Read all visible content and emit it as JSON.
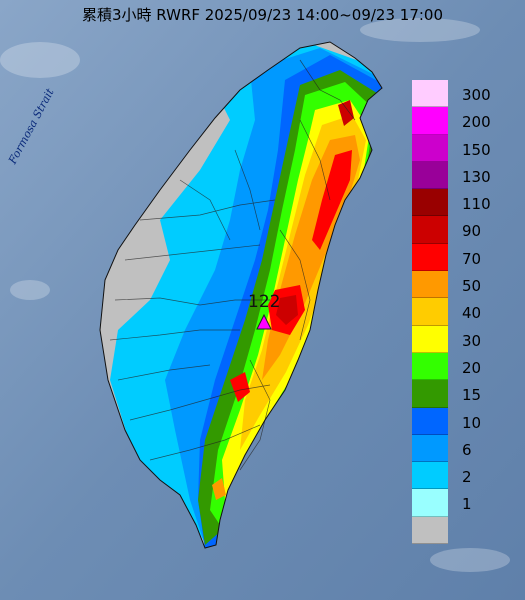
{
  "title": "累積3小時 RWRF 2025/09/23 14:00~09/23 17:00",
  "strait_label": "Formosa Strait",
  "max_marker": {
    "label": "122",
    "icon": "max-triangle-icon"
  },
  "legend": [
    {
      "label": "300",
      "color": "#ffccff"
    },
    {
      "label": "200",
      "color": "#ff00ff"
    },
    {
      "label": "150",
      "color": "#cc00cc"
    },
    {
      "label": "130",
      "color": "#990099"
    },
    {
      "label": "110",
      "color": "#990000"
    },
    {
      "label": "90",
      "color": "#cc0000"
    },
    {
      "label": "70",
      "color": "#ff0000"
    },
    {
      "label": "50",
      "color": "#ff9900"
    },
    {
      "label": "40",
      "color": "#ffcc00"
    },
    {
      "label": "30",
      "color": "#ffff00"
    },
    {
      "label": "20",
      "color": "#33ff00"
    },
    {
      "label": "15",
      "color": "#339900"
    },
    {
      "label": "10",
      "color": "#0066ff"
    },
    {
      "label": "6",
      "color": "#0099ff"
    },
    {
      "label": "2",
      "color": "#00ccff"
    },
    {
      "label": "1",
      "color": "#99ffff"
    },
    {
      "label": "",
      "color": "#c0c0c0"
    }
  ],
  "colors": {
    "sea": "#6f8fb4",
    "land_dry": "#bcbcbc"
  }
}
